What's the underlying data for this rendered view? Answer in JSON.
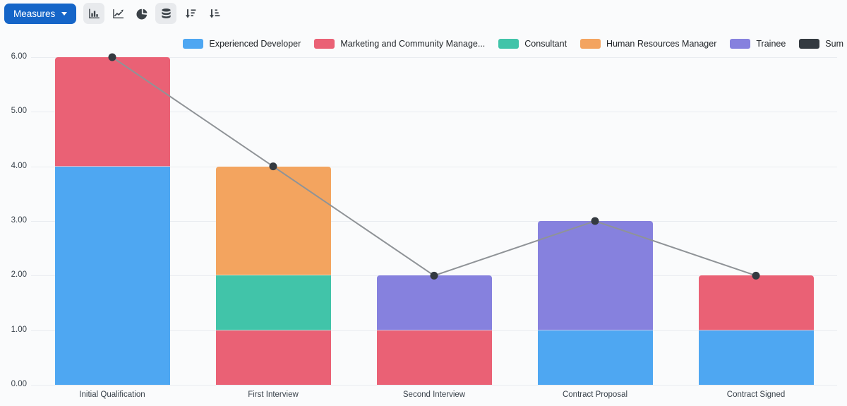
{
  "toolbar": {
    "measures_label": "Measures",
    "accent_color": "#1565C8",
    "buttons": [
      {
        "icon": "bar-chart",
        "active": true
      },
      {
        "icon": "line-chart",
        "active": false
      },
      {
        "icon": "pie-chart",
        "active": false
      },
      {
        "icon": "stacked",
        "active": true
      },
      {
        "icon": "sort-descending",
        "active": false
      },
      {
        "icon": "sort-ascending",
        "active": false
      }
    ]
  },
  "chart_data": {
    "type": "bar",
    "stacked": true,
    "grid": true,
    "legend_position": "top-right",
    "categories": [
      "Initial Qualification",
      "First Interview",
      "Second Interview",
      "Contract Proposal",
      "Contract Signed"
    ],
    "series": [
      {
        "name": "Experienced Developer",
        "color": "#4EA7F2",
        "values": [
          4,
          0,
          0,
          1,
          1
        ]
      },
      {
        "name": "Marketing and Community Manage...",
        "color": "#EA6175",
        "values": [
          2,
          1,
          1,
          0,
          1
        ]
      },
      {
        "name": "Consultant",
        "color": "#41C4A9",
        "values": [
          0,
          1,
          0,
          0,
          0
        ]
      },
      {
        "name": "Human Resources Manager",
        "color": "#F3A45F",
        "values": [
          0,
          2,
          0,
          0,
          0
        ]
      },
      {
        "name": "Trainee",
        "color": "#8681DE",
        "values": [
          0,
          0,
          1,
          2,
          0
        ]
      }
    ],
    "line_series": {
      "name": "Sum",
      "color": "#343A40",
      "line_color": "#8F9397",
      "values": [
        6,
        4,
        2,
        3,
        2
      ]
    },
    "ylim": [
      0,
      6
    ],
    "yticks": [
      "0.00",
      "1.00",
      "2.00",
      "3.00",
      "4.00",
      "5.00",
      "6.00"
    ],
    "xlabel": "",
    "ylabel": ""
  }
}
